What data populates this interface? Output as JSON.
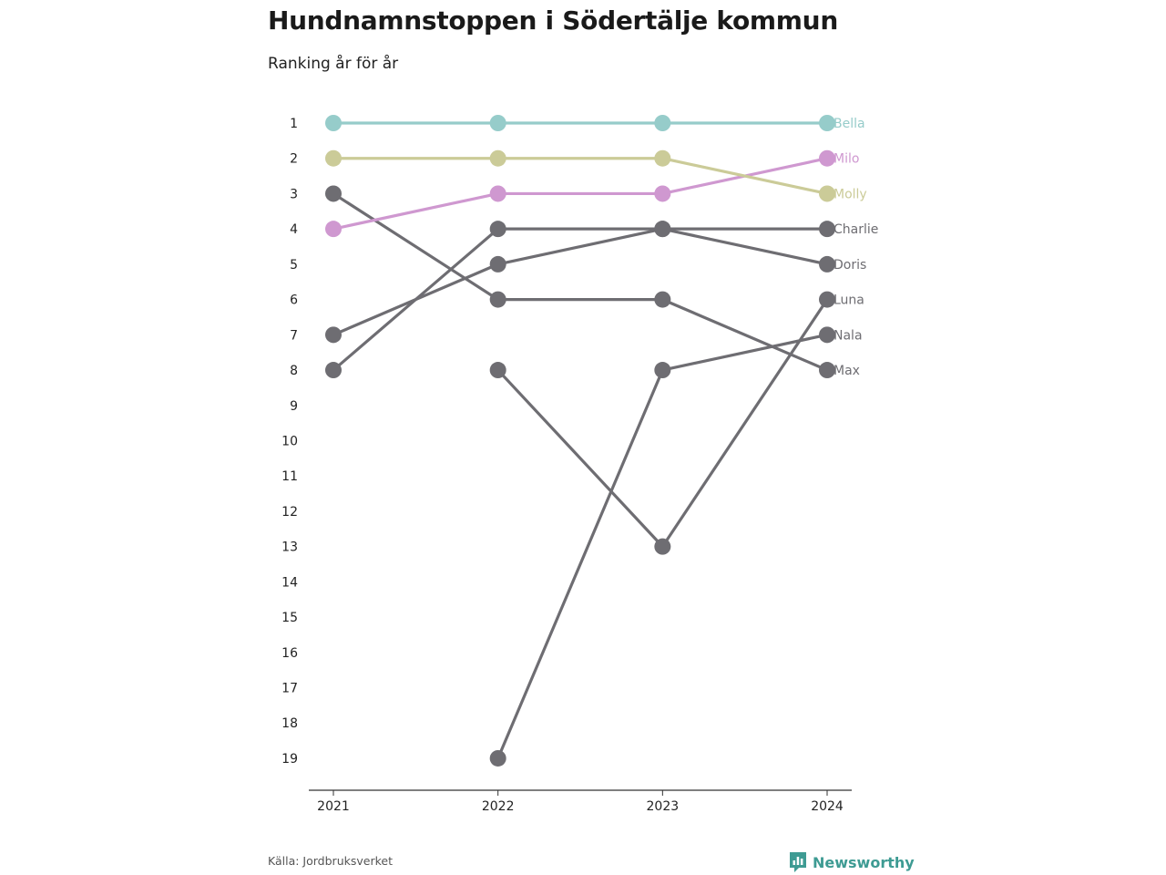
{
  "title": "Hundnamnstoppen i Södertälje kommun",
  "subtitle": "Ranking år för år",
  "source": "Källa: Jordbruksverket",
  "brand": {
    "name": "Newsworthy",
    "icon": "newsworthy-logo-icon",
    "color": "#3e9b93"
  },
  "chart_data": {
    "type": "line",
    "subtype": "bump",
    "x": [
      "2021",
      "2022",
      "2023",
      "2024"
    ],
    "y_ticks": [
      1,
      2,
      3,
      4,
      5,
      6,
      7,
      8,
      9,
      10,
      11,
      12,
      13,
      14,
      15,
      16,
      17,
      18,
      19
    ],
    "ylim": [
      1,
      19
    ],
    "y_reversed": true,
    "grid": false,
    "legend": "inline-right",
    "default_color": "#6e6d72",
    "series": [
      {
        "name": "Bella",
        "values": [
          1,
          1,
          1,
          1
        ],
        "color": "#96ccca"
      },
      {
        "name": "Milo",
        "values": [
          4,
          3,
          3,
          2
        ],
        "color": "#cf98d0"
      },
      {
        "name": "Molly",
        "values": [
          2,
          2,
          2,
          3
        ],
        "color": "#cbcb98"
      },
      {
        "name": "Charlie",
        "values": [
          8,
          4,
          4,
          4
        ],
        "color": "#6e6d72"
      },
      {
        "name": "Doris",
        "values": [
          7,
          5,
          4,
          5
        ],
        "color": "#6e6d72"
      },
      {
        "name": "Luna",
        "values": [
          null,
          8,
          13,
          6
        ],
        "color": "#6e6d72"
      },
      {
        "name": "Nala",
        "values": [
          null,
          19,
          8,
          7
        ],
        "color": "#6e6d72"
      },
      {
        "name": "Max",
        "values": [
          3,
          6,
          6,
          8
        ],
        "color": "#6e6d72"
      }
    ]
  }
}
